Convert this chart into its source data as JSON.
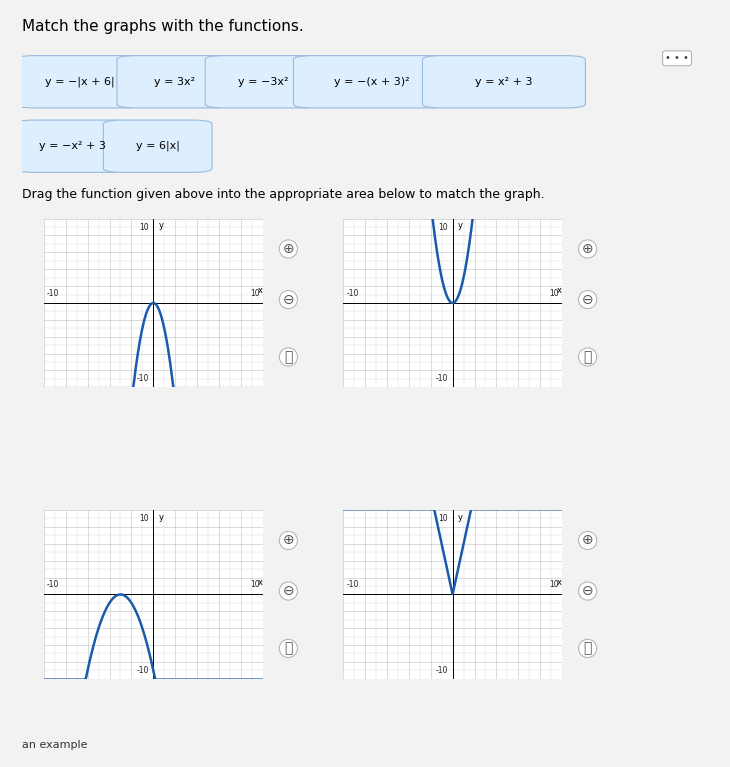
{
  "title": "Match the graphs with the functions.",
  "instruction": "Drag the function given above into the appropriate area below to match the graph.",
  "functions_row1": [
    "y = −|x + 6|",
    "y = 3x²",
    "y = −3x²",
    "y = −(x + 3)²",
    "y = x² + 3"
  ],
  "functions_row2": [
    "y = −x² + 3",
    "y = 6|x|"
  ],
  "graph1_type": "parabola_down_narrow",
  "graph2_type": "parabola_up_narrow",
  "graph3_type": "parabola_down_shifted",
  "graph4_type": "v_shape_up_steep",
  "axis_range": [
    -10,
    10
  ],
  "graph_color": "#1a5aaa",
  "grid_color": "#c0c0c0",
  "bg_white": "#ffffff",
  "bg_light": "#f0f4f8",
  "drop_zone_color": "#b8d4ea",
  "func_box_bg": "#ddeeff",
  "func_box_border": "#99bbdd",
  "outer_box_bg": "#f8f8f8",
  "outer_box_border": "#cccccc",
  "title_fontsize": 11,
  "instr_fontsize": 9,
  "func_fontsize": 8,
  "axis_label_fontsize": 7,
  "tick_fontsize": 6,
  "line_width": 1.8
}
